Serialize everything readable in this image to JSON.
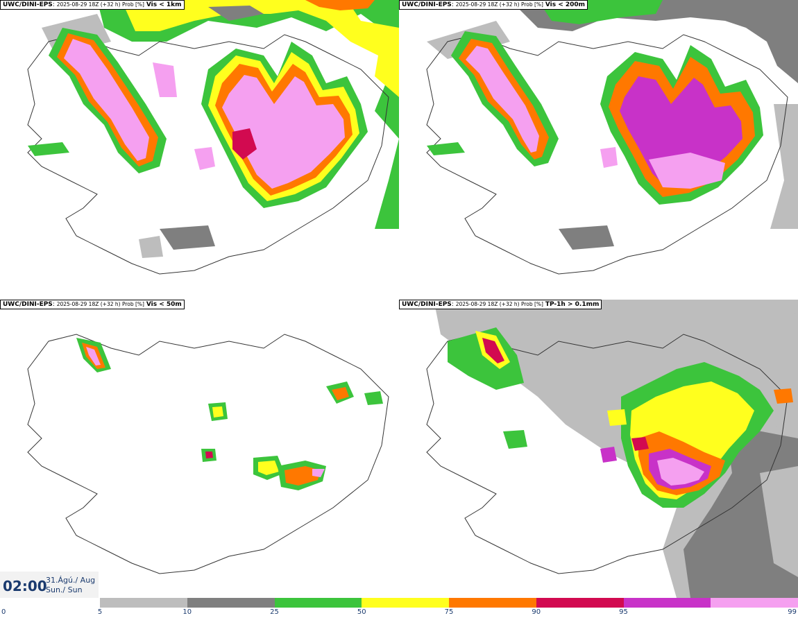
{
  "panels": [
    {
      "model": "UWC/DINI-EPS",
      "meta": "2025-08-29 18Z (+32 h) Prob [%]",
      "variable": "Vis < 1km"
    },
    {
      "model": "UWC/DINI-EPS",
      "meta": "2025-08-29 18Z (+32 h) Prob [%]",
      "variable": "Vis < 200m"
    },
    {
      "model": "UWC/DINI-EPS",
      "meta": "2025-08-29 18Z (+32 h) Prob [%]",
      "variable": "Vis < 50m"
    },
    {
      "model": "UWC/DINI-EPS",
      "meta": "2025-08-29 18Z (+32 h) Prob [%]",
      "variable": "TP-1h > 0.1mm"
    }
  ],
  "valid_time": {
    "clock": "02:00",
    "date_line1": "31.Ágú./ Aug",
    "date_line2": "Sun./ Sun"
  },
  "colorbar": {
    "ticks": [
      "0",
      "5",
      "10",
      "25",
      "50",
      "75",
      "90",
      "95",
      "99"
    ],
    "colors": [
      "#bdbdbd",
      "#7f7f7f",
      "#3cc43c",
      "#ffff1e",
      "#ff7800",
      "#d20a50",
      "#c832c8",
      "#f5a0f0"
    ]
  },
  "colors": {
    "light_gray": "#bdbdbd",
    "dark_gray": "#7f7f7f",
    "green": "#3cc43c",
    "yellow": "#ffff1e",
    "orange": "#ff7800",
    "crimson": "#d20a50",
    "magenta": "#c832c8",
    "pink": "#f5a0f0",
    "coast": "#333333"
  }
}
